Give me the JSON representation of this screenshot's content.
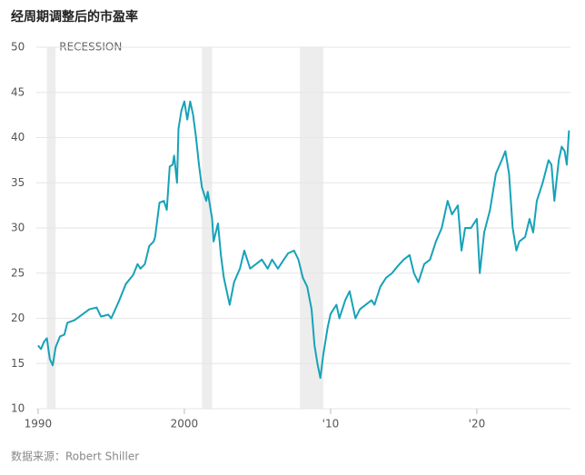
{
  "chart_data": {
    "type": "line",
    "title": "经周期调整后的市盈率",
    "source": "数据来源：Robert Shiller",
    "recession_label": "RECESSION",
    "recessions": [
      [
        1990.6,
        1991.2
      ],
      [
        2001.2,
        2001.9
      ],
      [
        2007.9,
        2009.5
      ]
    ],
    "recession_color": "#ededed",
    "color": "#17a2b8",
    "x": [
      1990.0,
      1990.2,
      1990.4,
      1990.6,
      1990.8,
      1991.0,
      1991.2,
      1991.5,
      1991.8,
      1992.0,
      1992.5,
      1993.0,
      1993.5,
      1994.0,
      1994.3,
      1994.8,
      1995.0,
      1995.5,
      1996.0,
      1996.5,
      1996.8,
      1997.0,
      1997.3,
      1997.6,
      1997.9,
      1998.0,
      1998.3,
      1998.6,
      1998.8,
      1999.0,
      1999.2,
      1999.3,
      1999.5,
      1999.6,
      1999.8,
      2000.0,
      2000.2,
      2000.4,
      2000.6,
      2000.8,
      2001.0,
      2001.2,
      2001.5,
      2001.6,
      2001.9,
      2002.0,
      2002.3,
      2002.5,
      2002.7,
      2002.9,
      2003.1,
      2003.4,
      2003.8,
      2004.1,
      2004.5,
      2004.9,
      2005.3,
      2005.7,
      2006.0,
      2006.4,
      2006.8,
      2007.1,
      2007.5,
      2007.8,
      2008.1,
      2008.4,
      2008.7,
      2008.9,
      2009.1,
      2009.3,
      2009.5,
      2009.8,
      2010.0,
      2010.4,
      2010.6,
      2011.0,
      2011.3,
      2011.7,
      2012.0,
      2012.4,
      2012.8,
      2013.0,
      2013.4,
      2013.8,
      2014.2,
      2014.6,
      2015.0,
      2015.4,
      2015.7,
      2016.0,
      2016.4,
      2016.8,
      2017.2,
      2017.6,
      2018.0,
      2018.3,
      2018.7,
      2018.95,
      2019.2,
      2019.6,
      2020.0,
      2020.2,
      2020.5,
      2020.9,
      2021.3,
      2021.7,
      2021.95,
      2022.2,
      2022.45,
      2022.7,
      2022.9,
      2023.3,
      2023.6,
      2023.85,
      2024.1,
      2024.5,
      2024.9,
      2025.1,
      2025.3,
      2025.6,
      2025.8,
      2026.0,
      2026.15,
      2026.3
    ],
    "values": [
      17.0,
      16.6,
      17.4,
      17.8,
      15.5,
      14.8,
      16.8,
      18.0,
      18.2,
      19.5,
      19.8,
      20.4,
      21.0,
      21.2,
      20.2,
      20.4,
      20.0,
      21.8,
      23.8,
      24.8,
      26.0,
      25.5,
      26.0,
      28.0,
      28.5,
      29.0,
      32.8,
      33.0,
      32.0,
      36.8,
      37.0,
      38.0,
      35.0,
      41.0,
      43.0,
      44.0,
      42.0,
      44.0,
      42.5,
      40.0,
      37.0,
      34.5,
      33.0,
      34.0,
      31.0,
      28.5,
      30.5,
      27.0,
      24.5,
      23.0,
      21.5,
      24.0,
      25.5,
      27.5,
      25.5,
      26.0,
      26.5,
      25.5,
      26.5,
      25.5,
      26.5,
      27.2,
      27.5,
      26.5,
      24.5,
      23.5,
      21.0,
      17.0,
      15.0,
      13.4,
      16.0,
      19.0,
      20.5,
      21.5,
      20.0,
      22.0,
      23.0,
      20.0,
      21.0,
      21.5,
      22.0,
      21.5,
      23.5,
      24.5,
      25.0,
      25.8,
      26.5,
      27.0,
      25.0,
      24.0,
      26.0,
      26.5,
      28.5,
      30.0,
      33.0,
      31.5,
      32.5,
      27.5,
      30.0,
      30.0,
      31.0,
      25.0,
      29.5,
      32.0,
      36.0,
      37.5,
      38.5,
      36.0,
      30.0,
      27.5,
      28.5,
      29.0,
      31.0,
      29.5,
      33.0,
      35.0,
      37.5,
      37.0,
      33.0,
      37.5,
      39.0,
      38.5,
      37.0,
      40.8
    ],
    "xlim": [
      1989.88,
      2026.4
    ],
    "xticks": [
      1990,
      2000,
      {
        "value": 2010,
        "label": "'10"
      },
      {
        "value": 2020,
        "label": "'20"
      }
    ],
    "ylim": [
      10,
      50
    ],
    "yticks": [
      10,
      15,
      20,
      25,
      30,
      35,
      40,
      45,
      50
    ],
    "grid": true
  }
}
